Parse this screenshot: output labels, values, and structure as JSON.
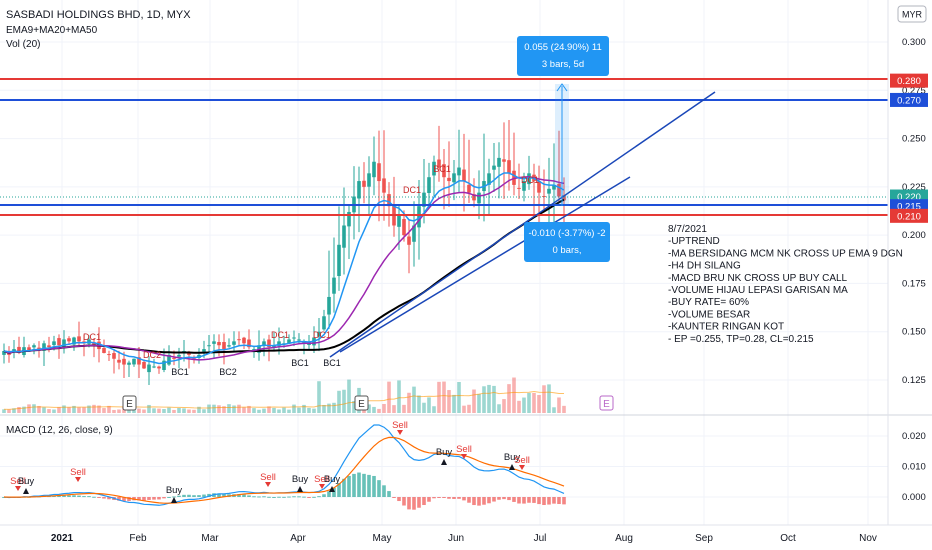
{
  "header": {
    "symbol": "SASBADI HOLDINGS BHD, 1D, MYX",
    "indicator_ma": "EMA9+MA20+MA50",
    "indicator_vol": "Vol (20)",
    "currency": "MYR"
  },
  "colors": {
    "up": "#26a69a",
    "down": "#ef5350",
    "ema9": "#2196f3",
    "ma20": "#9c27b0",
    "ma50": "#000000",
    "red_line": "#e53935",
    "blue_line": "#1e4fd8",
    "trend": "#1a47b8",
    "macd": "#2196f3",
    "signal": "#ff6d00"
  },
  "chart_data": [
    {
      "type": "candlestick",
      "title": "SASBADI HOLDINGS BHD, 1D, MYX",
      "y_axis": {
        "ticks": [
          "0.300",
          "0.275",
          "0.250",
          "0.225",
          "0.200",
          "0.175",
          "0.150",
          "0.125"
        ],
        "range": [
          0.11,
          0.31
        ]
      },
      "x_axis": {
        "ticks": [
          "2021",
          "Feb",
          "Mar",
          "Apr",
          "May",
          "Jun",
          "Jul",
          "Aug",
          "Sep",
          "Oct",
          "Nov"
        ]
      },
      "horizontal_levels": [
        {
          "value": 0.28,
          "label": "0.280",
          "color": "red"
        },
        {
          "value": 0.27,
          "label": "0.270",
          "color": "blue"
        },
        {
          "value": 0.22,
          "label": "0.220",
          "color": "green"
        },
        {
          "value": 0.215,
          "label": "0.215",
          "color": "blue"
        },
        {
          "value": 0.21,
          "label": "0.210",
          "color": "red"
        }
      ],
      "closes": [
        0.14,
        0.138,
        0.141,
        0.139,
        0.142,
        0.14,
        0.143,
        0.141,
        0.144,
        0.142,
        0.145,
        0.143,
        0.146,
        0.145,
        0.147,
        0.145,
        0.144,
        0.146,
        0.143,
        0.141,
        0.139,
        0.138,
        0.136,
        0.134,
        0.133,
        0.134,
        0.136,
        0.133,
        0.131,
        0.133,
        0.132,
        0.131,
        0.135,
        0.138,
        0.136,
        0.138,
        0.14,
        0.138,
        0.136,
        0.138,
        0.141,
        0.143,
        0.145,
        0.143,
        0.141,
        0.143,
        0.145,
        0.146,
        0.144,
        0.142,
        0.141,
        0.143,
        0.145,
        0.142,
        0.143,
        0.145,
        0.144,
        0.146,
        0.147,
        0.146,
        0.145,
        0.144,
        0.147,
        0.15,
        0.158,
        0.168,
        0.178,
        0.195,
        0.205,
        0.212,
        0.22,
        0.228,
        0.225,
        0.232,
        0.238,
        0.228,
        0.222,
        0.215,
        0.205,
        0.21,
        0.2,
        0.195,
        0.205,
        0.215,
        0.222,
        0.23,
        0.238,
        0.235,
        0.23,
        0.228,
        0.232,
        0.235,
        0.228,
        0.222,
        0.218,
        0.222,
        0.228,
        0.232,
        0.236,
        0.24,
        0.238,
        0.232,
        0.226,
        0.224,
        0.228,
        0.232,
        0.228,
        0.222,
        0.22,
        0.224,
        0.226,
        0.22,
        0.218
      ],
      "markers": [
        {
          "label": "DC1",
          "type": "top"
        },
        {
          "label": "DC2",
          "type": "top"
        },
        {
          "label": "BC1",
          "type": "bottom"
        },
        {
          "label": "BC2",
          "type": "bottom"
        },
        {
          "label": "DC1",
          "type": "top"
        },
        {
          "label": "BC1",
          "type": "bottom"
        },
        {
          "label": "DC1",
          "type": "top"
        },
        {
          "label": "BC1",
          "type": "bottom"
        },
        {
          "label": "DC1",
          "type": "top"
        },
        {
          "label": "BC1",
          "type": "top"
        },
        {
          "label": "DC1",
          "type": "top"
        }
      ],
      "events": [
        "E",
        "E",
        "E"
      ]
    },
    {
      "type": "line",
      "title": "MACD (12, 26, close, 9)",
      "y_axis": {
        "ticks": [
          "0.020",
          "0.010",
          "0.000"
        ],
        "range": [
          -0.008,
          0.026
        ]
      },
      "signals": [
        "Sell",
        "Buy",
        "Sell",
        "Buy",
        "Sell",
        "Buy",
        "Sell",
        "Buy",
        "Sell",
        "Buy",
        "Sell",
        "Buy",
        "Sell"
      ]
    }
  ],
  "measure_up": {
    "line1": "0.055 (24.90%) 11",
    "line2": "3 bars, 5d"
  },
  "measure_down": {
    "line1": "-0.010 (-3.77%) -2",
    "line2": "0 bars,"
  },
  "notes": [
    "8/7/2021",
    "-UPTREND",
    "-MA BERSIDANG MCM NK CROSS UP EMA 9 DGN",
    "-H4 DH SILANG",
    "-MACD BRU NK CROSS UP BUY CALL",
    "-VOLUME HIJAU LEPASI GARISAN MA",
    "-BUY RATE= 60%",
    "-VOLUME BESAR",
    "-KAUNTER RINGAN KOT",
    "- EP =0.255, TP=0.28, CL=0.215"
  ]
}
